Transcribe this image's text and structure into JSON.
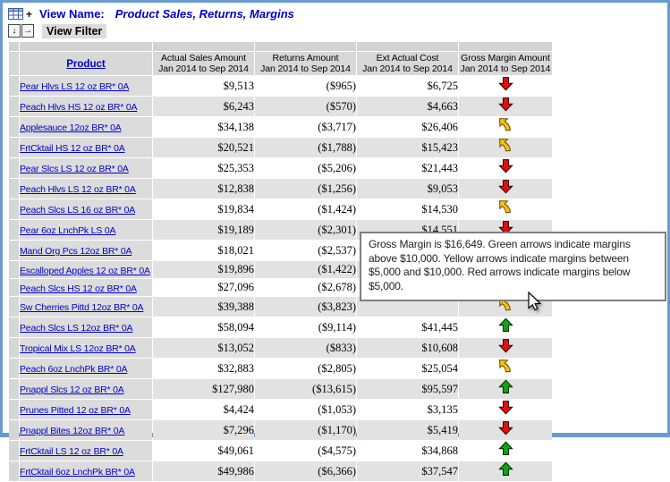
{
  "toolbar": {
    "grid_icon": "pivot-grid-icon",
    "plus_glyph": "+",
    "view_name_label": "View Name:",
    "view_name_value": "Product Sales, Returns, Margins",
    "buttons": [
      {
        "name": "move-down-button",
        "glyph": "↓"
      },
      {
        "name": "move-right-button",
        "glyph": "→"
      }
    ],
    "view_filter_label": "View Filter"
  },
  "table": {
    "columns": [
      {
        "id": "product",
        "label": "Product",
        "sublabel": ""
      },
      {
        "id": "sales",
        "label": "Actual Sales Amount",
        "sublabel": "Jan 2014 to Sep 2014"
      },
      {
        "id": "returns",
        "label": "Returns Amount",
        "sublabel": "Jan 2014 to Sep 2014"
      },
      {
        "id": "ext_cost",
        "label": "Ext Actual Cost",
        "sublabel": "Jan 2014 to Sep 2014"
      },
      {
        "id": "margin",
        "label": "Gross Margin Amount",
        "sublabel": "Jan 2014 to Sep 2014"
      }
    ],
    "rows": [
      {
        "product": "Pear Hlvs LS 12 oz BR* 0A",
        "sales": "$9,513",
        "returns": "($965)",
        "ext_cost": "$6,725",
        "arrow": "red-down"
      },
      {
        "product": "Peach Hlvs HS 12 oz BR* 0A",
        "sales": "$6,243",
        "returns": "($570)",
        "ext_cost": "$4,663",
        "arrow": "red-down"
      },
      {
        "product": "Applesauce 12oz BR* 0A",
        "sales": "$34,138",
        "returns": "($3,717)",
        "ext_cost": "$26,406",
        "arrow": "yellow-bent"
      },
      {
        "product": "FrtCktail HS 12 oz BR* 0A",
        "sales": "$20,521",
        "returns": "($1,788)",
        "ext_cost": "$15,423",
        "arrow": "yellow-bent"
      },
      {
        "product": "Pear Slcs LS 12 oz BR* 0A",
        "sales": "$25,353",
        "returns": "($5,206)",
        "ext_cost": "$21,443",
        "arrow": "red-down"
      },
      {
        "product": "Peach Hlvs LS 12 oz BR* 0A",
        "sales": "$12,838",
        "returns": "($1,256)",
        "ext_cost": "$9,053",
        "arrow": "red-down"
      },
      {
        "product": "Peach Slcs LS 16 oz BR* 0A",
        "sales": "$19,834",
        "returns": "($1,424)",
        "ext_cost": "$14,530",
        "arrow": "yellow-bent"
      },
      {
        "product": "Pear 6oz LnchPk LS 0A",
        "sales": "$19,189",
        "returns": "($2,301)",
        "ext_cost": "$14,551",
        "arrow": "red-down"
      },
      {
        "product": "Mand Org Pcs 12oz BR* 0A",
        "sales": "$18,021",
        "returns": "($2,537)",
        "ext_cost": "",
        "arrow": "red-down"
      },
      {
        "product": "Escalloped Apples 12 oz BR* 0A",
        "sales": "$19,896",
        "returns": "($1,422)",
        "ext_cost": "",
        "arrow": ""
      },
      {
        "product": "Peach Slcs HS 12 oz BR* 0A",
        "sales": "$27,096",
        "returns": "($2,678)",
        "ext_cost": "",
        "arrow": ""
      },
      {
        "product": "Sw Cherries Pittd 12oz BR* 0A",
        "sales": "$39,388",
        "returns": "($3,823)",
        "ext_cost": "",
        "arrow": "yellow-bent"
      },
      {
        "product": "Peach Slcs LS 12oz BR* 0A",
        "sales": "$58,094",
        "returns": "($9,114)",
        "ext_cost": "$41,445",
        "arrow": "green-up"
      },
      {
        "product": "Tropical Mix LS 12oz BR* 0A",
        "sales": "$13,052",
        "returns": "($833)",
        "ext_cost": "$10,608",
        "arrow": "red-down"
      },
      {
        "product": "Peach 6oz LnchPk BR* 0A",
        "sales": "$32,883",
        "returns": "($2,805)",
        "ext_cost": "$25,054",
        "arrow": "yellow-bent"
      },
      {
        "product": "Pnappl Slcs 12 oz BR* 0A",
        "sales": "$127,980",
        "returns": "($13,615)",
        "ext_cost": "$95,597",
        "arrow": "green-up"
      },
      {
        "product": "Prunes Pitted 12 oz BR* 0A",
        "sales": "$4,424",
        "returns": "($1,053)",
        "ext_cost": "$3,135",
        "arrow": "red-down"
      },
      {
        "product": "Pnappl Bites 12oz BR* 0A",
        "sales": "$7,296",
        "returns": "($1,170)",
        "ext_cost": "$5,419",
        "arrow": "red-down"
      },
      {
        "product": "FrtCktail LS 12 oz BR* 0A",
        "sales": "$49,061",
        "returns": "($4,575)",
        "ext_cost": "$34,868",
        "arrow": "green-up"
      },
      {
        "product": "FrtCktail 6oz LnchPk BR* 0A",
        "sales": "$49,986",
        "returns": "($6,366)",
        "ext_cost": "$37,547",
        "arrow": "green-up"
      }
    ]
  },
  "tooltip": {
    "text": "Gross Margin is $16,649. Green arrows indicate margins above $10,000. Yellow arrows indicate margins between $5,000 and $10,000. Red arrows indicate margins below $5,000."
  },
  "indicator_colors": {
    "red": "#e01010",
    "yellow": "#ffc20e",
    "green": "#14a314",
    "link_blue": "#0000cc",
    "tooltip_border": "#7f7f7f",
    "window_border": "#699bd2"
  }
}
